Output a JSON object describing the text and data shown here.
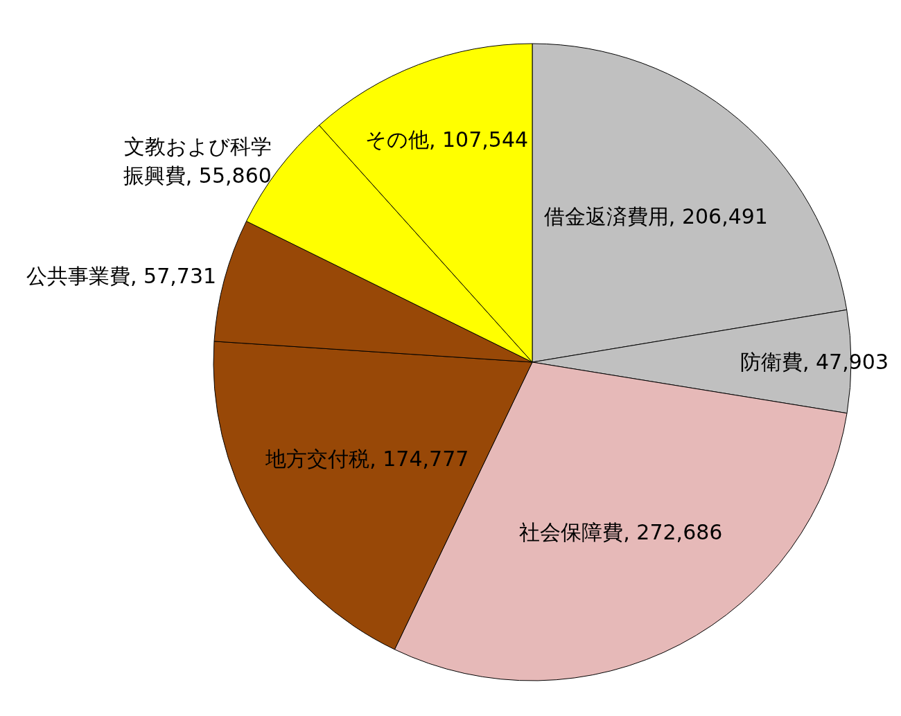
{
  "chart_data": {
    "type": "pie",
    "categories": [
      "借金返済費用",
      "防衛費",
      "社会保障費",
      "地方交付税",
      "公共事業費",
      "文教および科学振興費",
      "その他"
    ],
    "values": [
      206491,
      47903,
      272686,
      174777,
      57731,
      55860,
      107544
    ],
    "value_labels": [
      "206,491",
      "47,903",
      "272,686",
      "174,777",
      "57,731",
      "55,860",
      "107,544"
    ],
    "colors": [
      "#c0c0c0",
      "#c0c0c0",
      "#e6b9b8",
      "#984807",
      "#984807",
      "#ffff00",
      "#ffff00"
    ]
  }
}
